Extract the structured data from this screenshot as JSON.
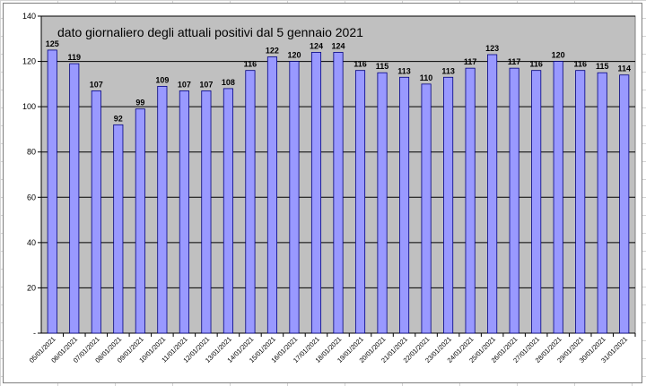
{
  "chart_data": {
    "type": "bar",
    "title": "dato giornaliero degli attuali positivi dal 5 gennaio 2021",
    "xlabel": "",
    "ylabel": "",
    "ylim": [
      0,
      140
    ],
    "yticks": [
      0,
      20,
      40,
      60,
      80,
      100,
      120,
      140
    ],
    "ytick_labels": [
      "-",
      "20",
      "40",
      "60",
      "80",
      "100",
      "120",
      "140"
    ],
    "grid": true,
    "legend": "none",
    "colors": {
      "bar_fill": "#9999ff",
      "bar_stroke": "#000080",
      "plot_background": "#c0c0c0"
    },
    "categories": [
      "05/01/2021",
      "06/01/2021",
      "07/01/2021",
      "08/01/2021",
      "09/01/2021",
      "10/01/2021",
      "11/01/2021",
      "12/01/2021",
      "13/01/2021",
      "14/01/2021",
      "15/01/2021",
      "16/01/2021",
      "17/01/2021",
      "18/01/2021",
      "19/01/2021",
      "20/01/2021",
      "21/01/2021",
      "22/01/2021",
      "23/01/2021",
      "24/01/2021",
      "25/01/2021",
      "26/01/2021",
      "27/01/2021",
      "28/01/2021",
      "29/01/2021",
      "30/01/2021",
      "31/01/2021"
    ],
    "values": [
      125,
      119,
      107,
      92,
      99,
      109,
      107,
      107,
      108,
      116,
      122,
      120,
      124,
      124,
      116,
      115,
      113,
      110,
      113,
      117,
      123,
      117,
      116,
      120,
      116,
      115,
      114
    ]
  }
}
